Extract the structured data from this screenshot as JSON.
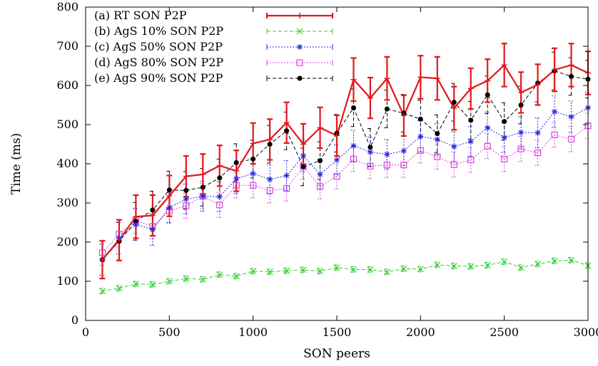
{
  "chart_data": {
    "type": "line",
    "title": "",
    "xlabel": "SON peers",
    "ylabel": "Time (ms)",
    "xlim": [
      0,
      3000
    ],
    "ylim": [
      0,
      800
    ],
    "xticks": [
      0,
      500,
      1000,
      1500,
      2000,
      2500,
      3000
    ],
    "yticks": [
      0,
      100,
      200,
      300,
      400,
      500,
      600,
      700,
      800
    ],
    "grid": false,
    "legend_position": "top-left",
    "x": [
      100,
      200,
      300,
      400,
      500,
      600,
      700,
      800,
      900,
      1000,
      1100,
      1200,
      1300,
      1400,
      1500,
      1600,
      1700,
      1800,
      1900,
      2000,
      2100,
      2200,
      2300,
      2400,
      2500,
      2600,
      2700,
      2800,
      2900,
      3000
    ],
    "series": [
      {
        "name": "(a) RT SON P2P",
        "color": "#e3161b",
        "marker": "plus",
        "line": "solid",
        "values": [
          155,
          205,
          265,
          268,
          318,
          368,
          373,
          395,
          382,
          452,
          462,
          505,
          450,
          492,
          472,
          615,
          568,
          618,
          523,
          621,
          618,
          542,
          592,
          612,
          652,
          582,
          602,
          640,
          652,
          632
        ],
        "errors": [
          48,
          52,
          55,
          52,
          52,
          52,
          52,
          52,
          52,
          52,
          52,
          52,
          52,
          52,
          52,
          55,
          52,
          55,
          52,
          55,
          55,
          55,
          52,
          55,
          55,
          52,
          52,
          55,
          55,
          55
        ]
      },
      {
        "name": "(b) AgS 10% SON P2P",
        "color": "#2ecc2e",
        "marker": "x",
        "line": "dashed",
        "values": [
          75,
          82,
          93,
          92,
          100,
          107,
          105,
          117,
          113,
          126,
          124,
          127,
          129,
          126,
          135,
          130,
          130,
          124,
          132,
          131,
          142,
          139,
          138,
          141,
          150,
          135,
          144,
          152,
          154,
          140
        ],
        "errors": [
          7,
          7,
          7,
          7,
          7,
          7,
          7,
          7,
          7,
          7,
          7,
          7,
          7,
          7,
          7,
          7,
          7,
          7,
          7,
          7,
          7,
          7,
          7,
          7,
          7,
          7,
          7,
          7,
          7,
          7
        ]
      },
      {
        "name": "(c) AgS 50% SON P2P",
        "color": "#2424e0",
        "marker": "star",
        "line": "dotted",
        "values": [
          155,
          210,
          245,
          232,
          288,
          310,
          317,
          316,
          362,
          375,
          360,
          370,
          420,
          373,
          410,
          446,
          430,
          424,
          433,
          470,
          462,
          444,
          457,
          492,
          467,
          480,
          479,
          533,
          520,
          543
        ],
        "errors": [
          40,
          40,
          40,
          40,
          38,
          38,
          38,
          38,
          38,
          38,
          38,
          38,
          40,
          38,
          38,
          40,
          38,
          38,
          38,
          40,
          40,
          38,
          38,
          40,
          38,
          40,
          38,
          40,
          40,
          40
        ]
      },
      {
        "name": "(d) AgS 80% SON P2P",
        "color": "#dd44dd",
        "marker": "square",
        "line": "dotted",
        "values": [
          173,
          220,
          255,
          240,
          280,
          293,
          317,
          295,
          345,
          345,
          332,
          337,
          393,
          342,
          368,
          412,
          394,
          397,
          397,
          434,
          418,
          398,
          410,
          445,
          412,
          438,
          428,
          474,
          463,
          497
        ],
        "errors": [
          32,
          32,
          32,
          32,
          32,
          32,
          32,
          32,
          32,
          32,
          32,
          32,
          32,
          32,
          32,
          32,
          32,
          32,
          32,
          32,
          32,
          32,
          32,
          32,
          32,
          32,
          32,
          32,
          32,
          32
        ]
      },
      {
        "name": "(e) AgS 90% SON P2P",
        "color": "#000000",
        "marker": "circle",
        "line": "dashed",
        "values": [
          155,
          202,
          253,
          282,
          333,
          332,
          340,
          364,
          403,
          412,
          450,
          484,
          392,
          408,
          478,
          543,
          442,
          540,
          529,
          514,
          477,
          557,
          511,
          576,
          508,
          550,
          606,
          637,
          623,
          616
        ],
        "errors": [
          48,
          48,
          48,
          48,
          48,
          48,
          48,
          48,
          48,
          48,
          48,
          48,
          48,
          48,
          48,
          48,
          48,
          48,
          48,
          48,
          48,
          48,
          48,
          48,
          48,
          48,
          48,
          48,
          48,
          48
        ]
      }
    ]
  }
}
